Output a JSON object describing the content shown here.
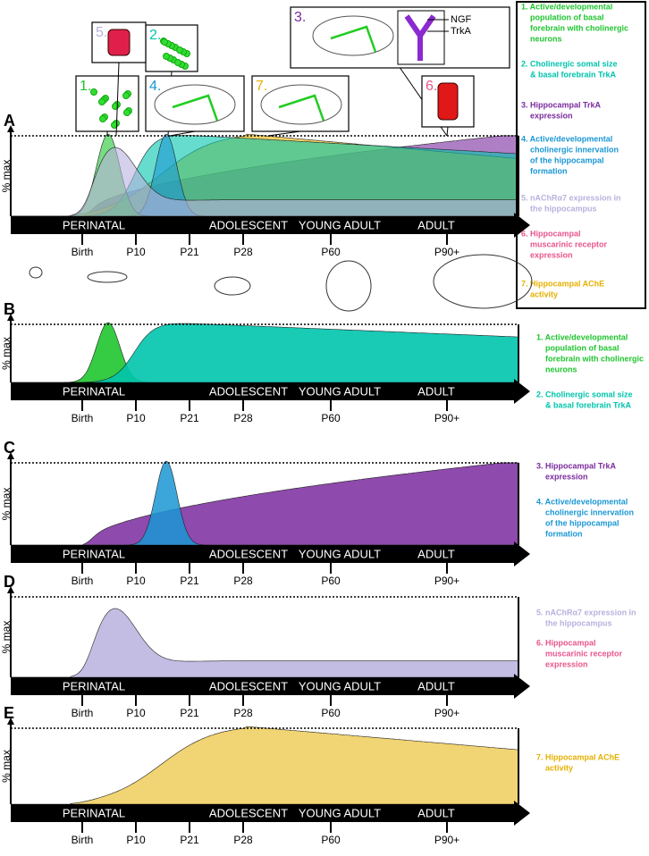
{
  "panels": [
    {
      "label": "A",
      "y_axis_label": "% max"
    },
    {
      "label": "B",
      "y_axis_label": "% max"
    },
    {
      "label": "C",
      "y_axis_label": "% max"
    },
    {
      "label": "D",
      "y_axis_label": "% max"
    },
    {
      "label": "E",
      "y_axis_label": "% max"
    }
  ],
  "timeline": {
    "stages": [
      "PERINATAL",
      "ADOLESCENT",
      "YOUNG ADULT",
      "ADULT"
    ],
    "ticks": [
      "Birth",
      "P10",
      "P21",
      "P28",
      "P60",
      "P90+"
    ]
  },
  "legend": [
    {
      "lines": [
        "1. Active/developmental",
        "population of basal",
        "forebrain with cholinergic",
        "neurons"
      ],
      "color": "#1fc52f"
    },
    {
      "lines": [
        "2. Cholinergic somal size",
        "& basal forebrain TrkA"
      ],
      "color": "#00c4ad"
    },
    {
      "lines": [
        "3. Hippocampal TrkA",
        "expression"
      ],
      "color": "#7a2a9e"
    },
    {
      "lines": [
        "4. Active/developmental",
        "cholinergic innervation",
        "of the hippocampal",
        "formation"
      ],
      "color": "#1a97d4"
    },
    {
      "lines": [
        "5. nAChRα7 expression in",
        "the hippocampus"
      ],
      "color": "#b9b1de"
    },
    {
      "lines": [
        "6. Hippocampal",
        "muscarinic receptor",
        "expression"
      ],
      "color": "#e8558c"
    },
    {
      "lines": [
        "7. Hippocampal AChE",
        "activity"
      ],
      "color": "#e6b000"
    }
  ],
  "insets": [
    {
      "label": "1."
    },
    {
      "label": "2."
    },
    {
      "label": "3.",
      "annotations": [
        "NGF",
        "TrkA"
      ]
    },
    {
      "label": "4."
    },
    {
      "label": "5."
    },
    {
      "label": "6."
    },
    {
      "label": "7."
    }
  ]
}
